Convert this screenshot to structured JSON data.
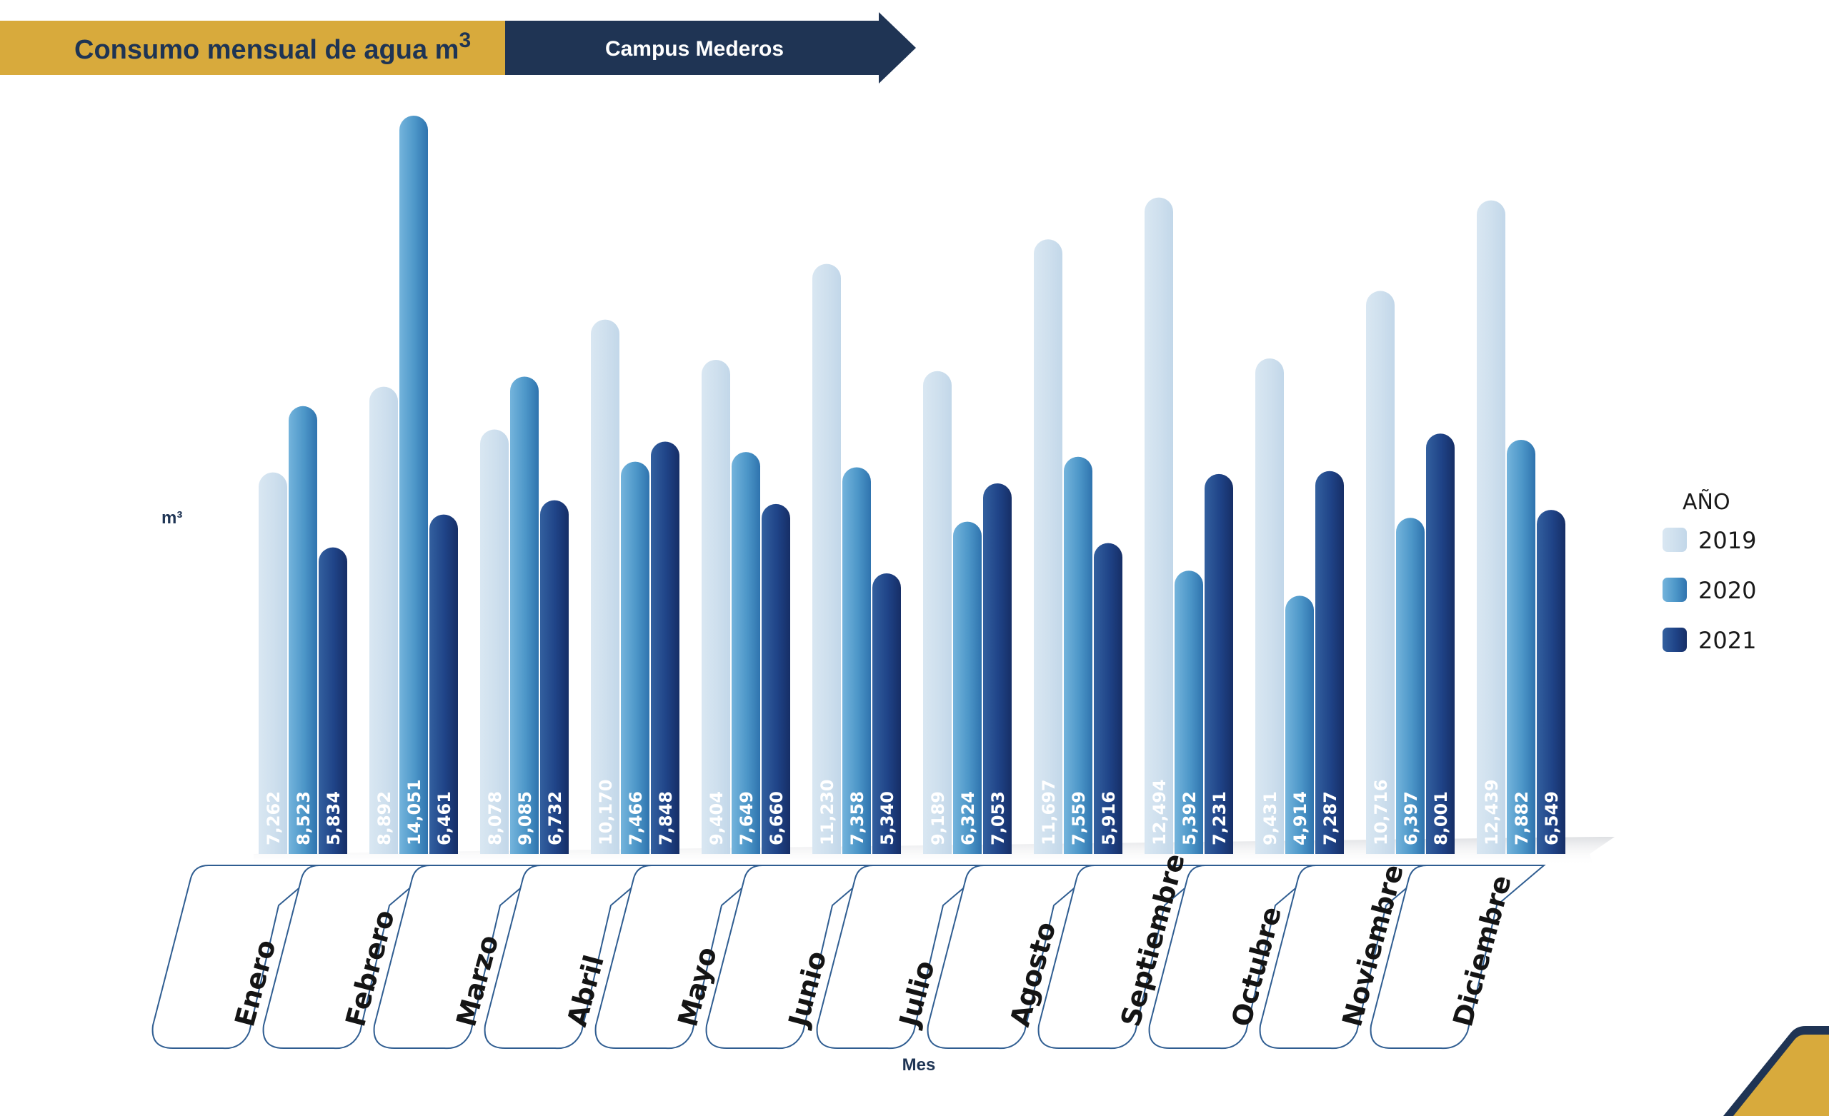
{
  "header": {
    "title": "Consumo mensual de agua m",
    "title_sup": "3",
    "subtitle": "Campus Mederos",
    "gold_color": "#d8aa3c",
    "navy_color": "#1f3454"
  },
  "legend": {
    "title": "AÑO"
  },
  "chart_data": {
    "type": "bar",
    "title": "Consumo mensual de agua m3",
    "subtitle": "Campus Mederos",
    "xlabel": "Mes",
    "ylabel": "m³",
    "ylim": [
      0,
      14051
    ],
    "grid": false,
    "legend_position": "right",
    "categories": [
      "Enero",
      "Febrero",
      "Marzo",
      "Abril",
      "Mayo",
      "Junio",
      "Julio",
      "Agosto",
      "Septiembre",
      "Octubre",
      "Noviembre",
      "Diciembre"
    ],
    "series": [
      {
        "name": "2019",
        "color": "#cfe0ee",
        "labels": [
          "7,262",
          "8,892",
          "8,078",
          "10,170",
          "9,404",
          "11,230",
          "9,189",
          "11,697",
          "12,494",
          "9,431",
          "10,716",
          "12,439"
        ],
        "values": [
          7262,
          8892,
          8078,
          10170,
          9404,
          11230,
          9189,
          11697,
          12494,
          9431,
          10716,
          12439
        ]
      },
      {
        "name": "2020",
        "color": "#4c96c8",
        "labels": [
          "8,523",
          "14,051",
          "9,085",
          "7,466",
          "7,649",
          "7,358",
          "6,324",
          "7,559",
          "5,392",
          "4,914",
          "6,397",
          "7,882"
        ],
        "values": [
          8523,
          14051,
          9085,
          7466,
          7649,
          7358,
          6324,
          7559,
          5392,
          4914,
          6397,
          7882
        ]
      },
      {
        "name": "2021",
        "color": "#1d3f82",
        "labels": [
          "5,834",
          "6,461",
          "6,732",
          "7,848",
          "6,660",
          "5,340",
          "7,053",
          "5,916",
          "7,231",
          "7,287",
          "8,001",
          "6,549"
        ],
        "values": [
          5834,
          6461,
          6732,
          7848,
          6660,
          5340,
          7053,
          5916,
          7231,
          7287,
          8001,
          6549
        ]
      }
    ]
  }
}
